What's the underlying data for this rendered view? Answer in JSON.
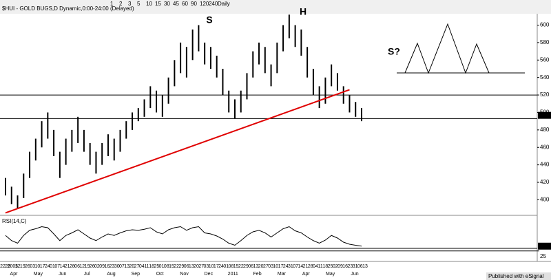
{
  "chart_data": {
    "type": "ohlc",
    "title": "$HUI - GOLD BUGS,D Dynamic,0:00-24:00 (Delayed)",
    "toolbar": [
      "1",
      "2",
      "3",
      "5",
      "10",
      "15",
      "30",
      "45",
      "60",
      "90",
      "120",
      "240",
      "Daily"
    ],
    "annotations": [
      "S",
      "H",
      "S?"
    ],
    "ylim": [
      383,
      613
    ],
    "yticks": [
      400,
      420,
      440,
      460,
      480,
      500,
      520,
      540,
      560,
      580,
      600
    ],
    "last": 496.695,
    "hlines": [
      520,
      493
    ],
    "bar_color": "#000000",
    "trendline": {
      "color": "#e00000",
      "start": [
        0,
        385
      ],
      "end": [
        57,
        526
      ]
    },
    "highs": [
      425,
      415,
      405,
      430,
      455,
      470,
      490,
      500,
      480,
      455,
      470,
      480,
      495,
      480,
      465,
      455,
      465,
      475,
      470,
      480,
      490,
      500,
      505,
      515,
      530,
      525,
      520,
      540,
      560,
      580,
      575,
      595,
      600,
      580,
      575,
      565,
      550,
      525,
      515,
      525,
      545,
      570,
      580,
      575,
      555,
      580,
      600,
      612,
      600,
      595,
      575,
      550,
      530,
      540,
      555,
      545,
      530,
      520,
      512,
      505
    ],
    "lows": [
      405,
      395,
      390,
      402,
      425,
      445,
      460,
      470,
      450,
      425,
      440,
      455,
      465,
      455,
      440,
      430,
      440,
      450,
      445,
      455,
      470,
      480,
      490,
      495,
      505,
      500,
      495,
      510,
      530,
      545,
      540,
      560,
      570,
      555,
      550,
      540,
      520,
      500,
      493,
      500,
      515,
      540,
      555,
      545,
      530,
      545,
      570,
      585,
      575,
      565,
      540,
      520,
      505,
      510,
      530,
      525,
      510,
      500,
      495,
      490
    ],
    "rsi": {
      "label": "RSI(14,C)",
      "ylim": [
        10,
        90
      ],
      "yticks": [
        25
      ],
      "hlines": [
        30,
        25
      ],
      "last": 34.29,
      "values": [
        55,
        45,
        40,
        55,
        65,
        68,
        72,
        70,
        58,
        45,
        55,
        60,
        66,
        58,
        50,
        45,
        52,
        58,
        55,
        60,
        64,
        66,
        65,
        67,
        70,
        62,
        58,
        66,
        70,
        72,
        65,
        70,
        72,
        60,
        58,
        54,
        48,
        40,
        36,
        45,
        55,
        62,
        65,
        60,
        52,
        60,
        68,
        72,
        64,
        60,
        52,
        45,
        40,
        46,
        55,
        50,
        42,
        38,
        36,
        34.29
      ]
    },
    "day_labels": [
      "22",
      "29",
      "2005",
      "12",
      "19",
      "26",
      "03",
      "10",
      "17",
      "24",
      "01",
      "07",
      "14",
      "21",
      "28",
      "06",
      "12",
      "19",
      "26",
      "02",
      "09",
      "16",
      "23",
      "30",
      "07",
      "13",
      "20",
      "27",
      "04",
      "11",
      "18",
      "25",
      "01",
      "08",
      "15",
      "22",
      "29",
      "06",
      "13",
      "20",
      "27",
      "03",
      "10",
      "17",
      "24",
      "01",
      "08",
      "15",
      "22",
      "29",
      "06",
      "13",
      "20",
      "27",
      "03",
      "10",
      "17",
      "24",
      "31",
      "07",
      "14",
      "21",
      "28",
      "04",
      "11",
      "18",
      "25",
      "02",
      "09",
      "16",
      "23",
      "31",
      "06",
      "13"
    ],
    "months": [
      "Apr",
      "May",
      "Jun",
      "Jul",
      "Aug",
      "Sep",
      "Oct",
      "Nov",
      "Dec",
      "2011",
      "Feb",
      "Mar",
      "Apr",
      "May",
      "Jun"
    ],
    "footer": "Published with eSignal"
  }
}
